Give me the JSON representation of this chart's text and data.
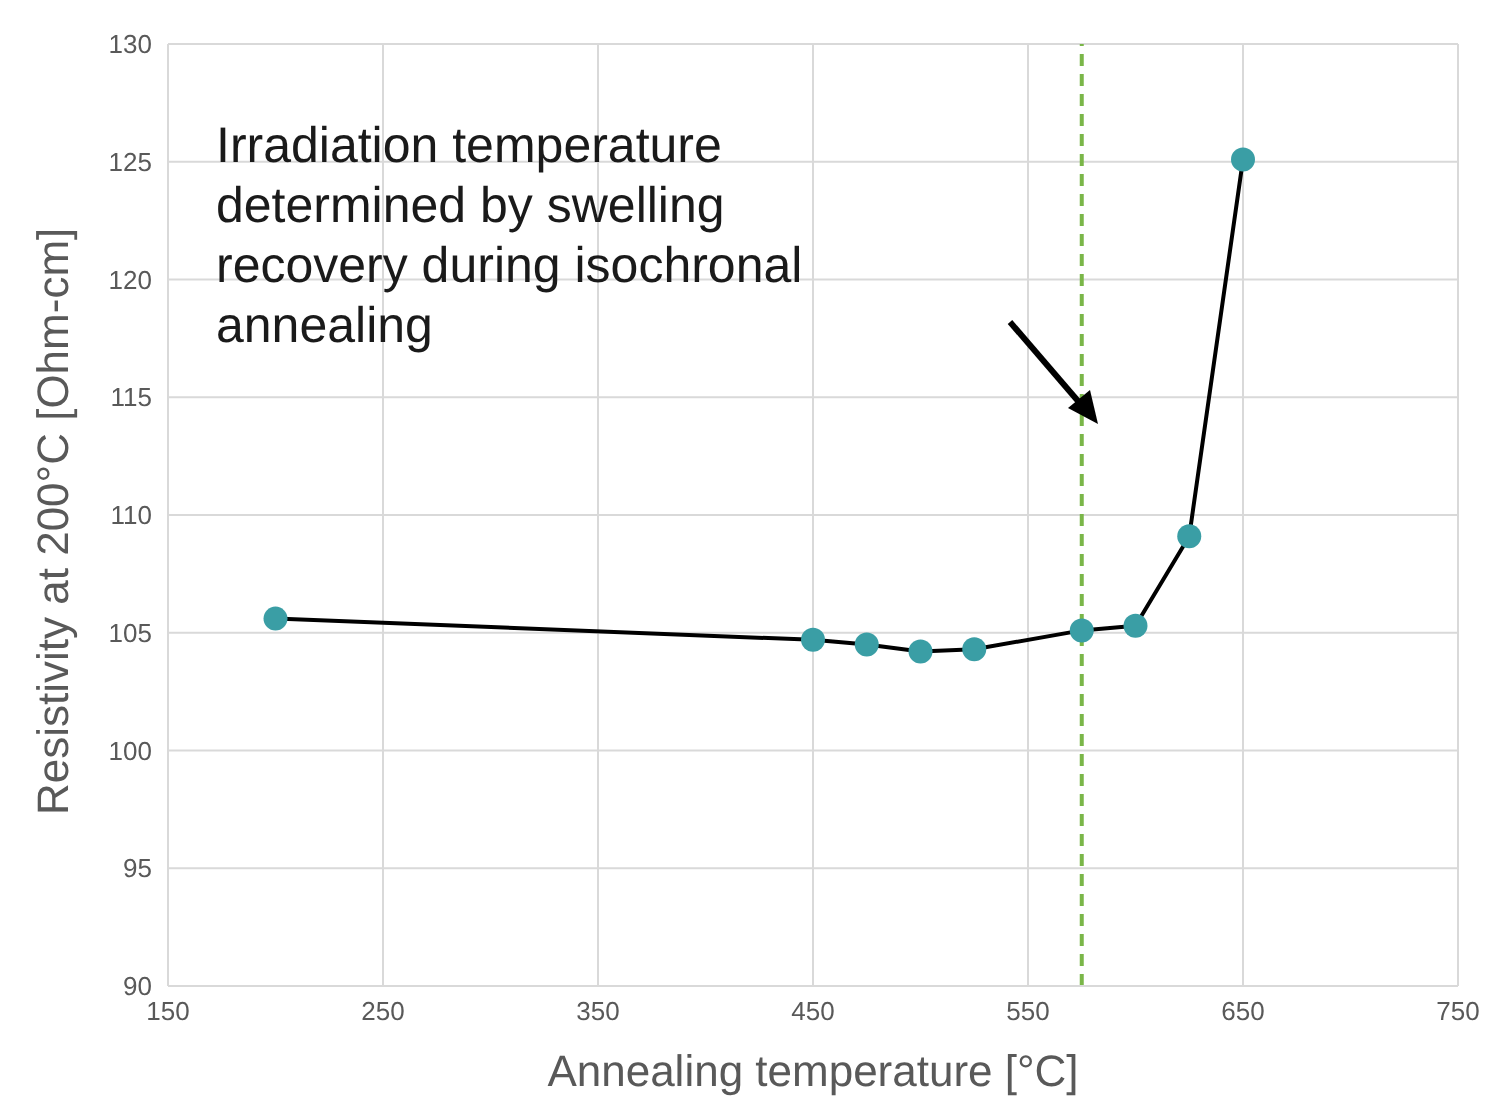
{
  "chart_data": {
    "type": "line",
    "xlabel": "Annealing temperature [°C]",
    "ylabel": "Resistivity at 200°C [Ohm-cm]",
    "x": [
      200,
      450,
      475,
      500,
      525,
      575,
      600,
      625,
      650
    ],
    "series": [
      {
        "color": "#3a9ea5",
        "values": [
          105.6,
          104.7,
          104.5,
          104.2,
          104.3,
          105.1,
          105.3,
          109.1,
          125.1
        ]
      }
    ],
    "xlim": [
      150,
      750
    ],
    "xticks": [
      150,
      250,
      350,
      450,
      550,
      650,
      750
    ],
    "ylim": [
      90,
      130
    ],
    "yticks": [
      90,
      95,
      100,
      105,
      110,
      115,
      120,
      125,
      130
    ],
    "ref_lines": [
      {
        "axis": "x",
        "value": 575,
        "color": "#7ab648",
        "line_style": "dashed"
      }
    ],
    "annotations": [
      "Irradiation temperature\ndetermined by swelling\nrecovery during isochronal\nannealing"
    ],
    "grid": true,
    "marker": "circle",
    "line_style": "solid"
  }
}
